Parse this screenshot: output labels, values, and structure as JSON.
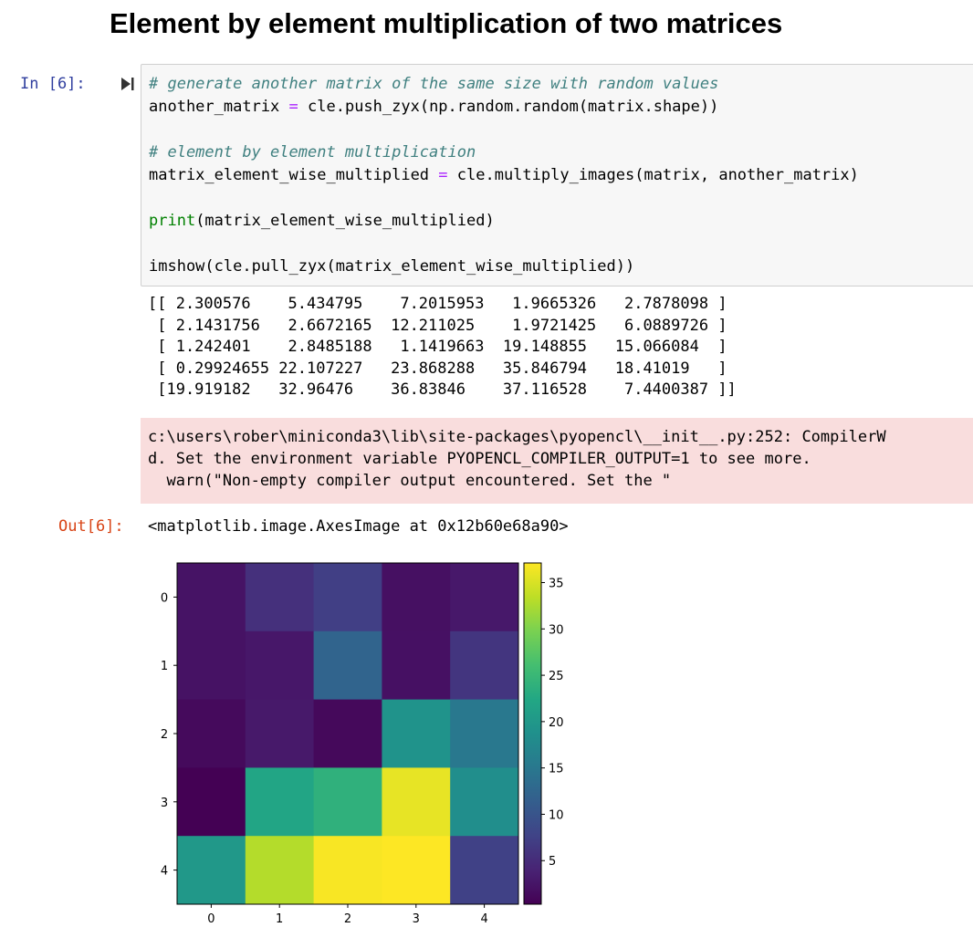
{
  "heading": "Element by element multiplication of two matrices",
  "input_prompt": "In [6]:",
  "output_prompt": "Out[6]:",
  "code_lines": [
    [
      {
        "t": "# generate another matrix of the same size with random values",
        "c": "c-comment"
      }
    ],
    [
      {
        "t": "another_matrix ",
        "c": "c-text"
      },
      {
        "t": "=",
        "c": "c-op"
      },
      {
        "t": " cle.push_zyx(np.random.random(matrix.shape))",
        "c": "c-text"
      }
    ],
    [],
    [
      {
        "t": "# element by element multiplication",
        "c": "c-comment"
      }
    ],
    [
      {
        "t": "matrix_element_wise_multiplied ",
        "c": "c-text"
      },
      {
        "t": "=",
        "c": "c-op"
      },
      {
        "t": " cle.multiply_images(matrix, another_matrix)",
        "c": "c-text"
      }
    ],
    [],
    [
      {
        "t": "print",
        "c": "c-builtin"
      },
      {
        "t": "(matrix_element_wise_multiplied)",
        "c": "c-text"
      }
    ],
    [],
    [
      {
        "t": "imshow(cle.pull_zyx(matrix_element_wise_multiplied))",
        "c": "c-text"
      }
    ]
  ],
  "stdout": "[[ 2.300576    5.434795    7.2015953   1.9665326   2.7878098 ]\n [ 2.1431756   2.6672165  12.211025    1.9721425   6.0889726 ]\n [ 1.242401    2.8485188   1.1419663  19.148855   15.066084  ]\n [ 0.29924655 22.107227   23.868288   35.846794   18.41019   ]\n [19.919182   32.96476    36.83846    37.116528    7.4400387 ]]",
  "stderr": "c:\\users\\rober\\miniconda3\\lib\\site-packages\\pyopencl\\__init__.py:252: CompilerWarning: Non-empty compiler output encountered. Set the environment variable PYOPENCL_COMPILER_OUTPUT=1 to see more.\nd. Set the environment variable PYOPENCL_COMPILER_OUTPUT=1 to see more.\n  warn(\"Non-empty compiler output encountered. Set the \"",
  "stderr_lines": [
    "c:\\users\\rober\\miniconda3\\lib\\site-packages\\pyopencl\\__init__.py:252: CompilerW",
    "d. Set the environment variable PYOPENCL_COMPILER_OUTPUT=1 to see more.",
    "  warn(\"Non-empty compiler output encountered. Set the \""
  ],
  "output_repr": "<matplotlib.image.AxesImage at 0x12b60e68a90>",
  "colors": {
    "in_prompt": "#303f9f",
    "out_prompt": "#d84315",
    "stderr_bg": "#f9dddd",
    "input_bg": "#f7f7f7"
  },
  "chart_data": {
    "type": "heatmap",
    "colormap": "viridis",
    "rows": [
      0,
      1,
      2,
      3,
      4
    ],
    "cols": [
      0,
      1,
      2,
      3,
      4
    ],
    "values": [
      [
        2.300576,
        5.434795,
        7.2015953,
        1.9665326,
        2.7878098
      ],
      [
        2.1431756,
        2.6672165,
        12.211025,
        1.9721425,
        6.0889726
      ],
      [
        1.242401,
        2.8485188,
        1.1419663,
        19.148855,
        15.066084
      ],
      [
        0.29924655,
        22.107227,
        23.868288,
        35.846794,
        18.41019
      ],
      [
        19.919182,
        32.96476,
        36.83846,
        37.116528,
        7.4400387
      ]
    ],
    "xticks": [
      "0",
      "1",
      "2",
      "3",
      "4"
    ],
    "yticks": [
      "0",
      "1",
      "2",
      "3",
      "4"
    ],
    "colorbar_ticks": [
      5,
      10,
      15,
      20,
      25,
      30,
      35
    ],
    "vmin": 0.29924655,
    "vmax": 37.116528,
    "grid": false
  }
}
